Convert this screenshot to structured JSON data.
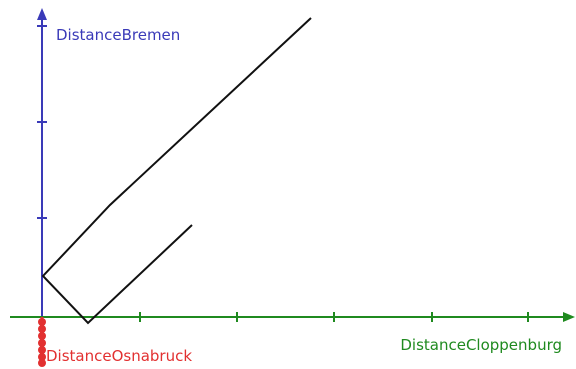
{
  "labels": {
    "bremen": "DistanceBremen",
    "cloppenburg": "DistanceCloppenburg",
    "osnabruck": "DistanceOsnabruck"
  },
  "colors": {
    "bremen_axis": "#3a3ab8",
    "cloppenburg_axis": "#1f8a1f",
    "osnabruck_axis": "#e23030",
    "path": "#111111"
  }
}
